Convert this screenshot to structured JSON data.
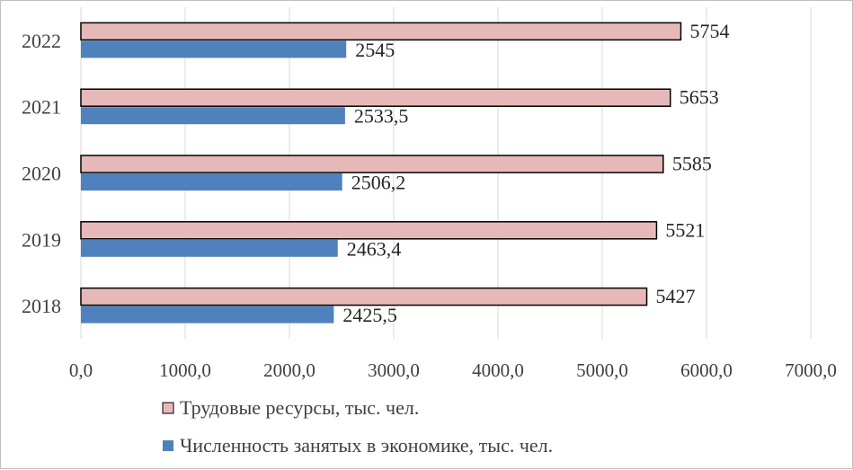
{
  "chart_data": {
    "type": "bar",
    "orientation": "horizontal",
    "categories": [
      "2018",
      "2019",
      "2020",
      "2021",
      "2022"
    ],
    "series": [
      {
        "name": "Трудовые ресурсы, тыс. чел.",
        "values": [
          5427,
          5521,
          5585,
          5653,
          5754
        ],
        "labels": [
          "5427",
          "5521",
          "5585",
          "5653",
          "5754"
        ],
        "color": "#e6b9b8",
        "outline": "#000000"
      },
      {
        "name": "Численность занятых в экономике, тыс. чел.",
        "values": [
          2425.5,
          2463.4,
          2506.2,
          2533.5,
          2545
        ],
        "labels": [
          "2425,5",
          "2463,4",
          "2506,2",
          "2533,5",
          "2545"
        ],
        "color": "#4f81bd",
        "outline": "none"
      }
    ],
    "xlim": [
      0,
      7000
    ],
    "xticks": [
      "0,0",
      "1000,0",
      "2000,0",
      "3000,0",
      "4000,0",
      "5000,0",
      "6000,0",
      "7000,0"
    ],
    "grid": true,
    "legend_position": "bottom",
    "title": "",
    "xlabel": "",
    "ylabel": ""
  }
}
